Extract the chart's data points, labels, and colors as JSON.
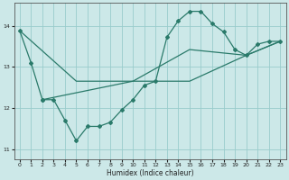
{
  "xlabel": "Humidex (Indice chaleur)",
  "bg_color": "#cce8e8",
  "grid_color": "#99cccc",
  "line_color": "#2a7a6a",
  "xlim": [
    -0.5,
    23.5
  ],
  "ylim": [
    10.75,
    14.55
  ],
  "yticks": [
    11,
    12,
    13,
    14
  ],
  "xticks": [
    0,
    1,
    2,
    3,
    4,
    5,
    6,
    7,
    8,
    9,
    10,
    11,
    12,
    13,
    14,
    15,
    16,
    17,
    18,
    19,
    20,
    21,
    22,
    23
  ],
  "line1_x": [
    0,
    1,
    2
  ],
  "line1_y": [
    13.88,
    13.1,
    12.2
  ],
  "line2_x": [
    2,
    3,
    4,
    5,
    6,
    7,
    8,
    9,
    10,
    11,
    12,
    13,
    14,
    15,
    16,
    17,
    18,
    19,
    20,
    21,
    22,
    23
  ],
  "line2_y": [
    12.2,
    12.2,
    11.7,
    11.2,
    11.55,
    11.55,
    11.65,
    11.95,
    12.2,
    12.55,
    12.65,
    13.72,
    14.12,
    14.35,
    14.35,
    14.05,
    13.85,
    13.42,
    13.28,
    13.55,
    13.62,
    13.62
  ],
  "line3_x": [
    0,
    5,
    10,
    15,
    20,
    23
  ],
  "line3_y": [
    13.88,
    12.65,
    12.65,
    12.65,
    13.28,
    13.62
  ],
  "line4_x": [
    2,
    10,
    15,
    20,
    23
  ],
  "line4_y": [
    12.2,
    12.65,
    13.42,
    13.28,
    13.62
  ]
}
